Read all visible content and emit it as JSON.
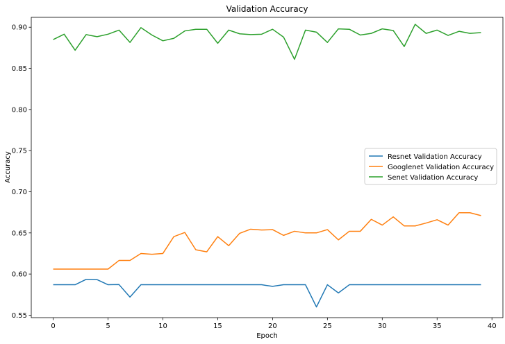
{
  "chart_data": {
    "type": "line",
    "title": "Validation Accuracy",
    "xlabel": "Epoch",
    "ylabel": "Accuracy",
    "xlim": [
      -2,
      41
    ],
    "ylim": [
      0.547,
      0.912
    ],
    "xticks": [
      0,
      5,
      10,
      15,
      20,
      25,
      30,
      35,
      40
    ],
    "yticks": [
      0.55,
      0.6,
      0.65,
      0.7,
      0.75,
      0.8,
      0.85,
      0.9
    ],
    "xtick_labels": [
      "0",
      "5",
      "10",
      "15",
      "20",
      "25",
      "30",
      "35",
      "40"
    ],
    "ytick_labels": [
      "0.55",
      "0.60",
      "0.65",
      "0.70",
      "0.75",
      "0.80",
      "0.85",
      "0.90"
    ],
    "legend_position": "center-right",
    "x": [
      0,
      1,
      2,
      3,
      4,
      5,
      6,
      7,
      8,
      9,
      10,
      11,
      12,
      13,
      14,
      15,
      16,
      17,
      18,
      19,
      20,
      21,
      22,
      23,
      24,
      25,
      26,
      27,
      28,
      29,
      30,
      31,
      32,
      33,
      34,
      35,
      36,
      37,
      38,
      39
    ],
    "series": [
      {
        "name": "Resnet Validation Accuracy",
        "color": "#1f77b4",
        "values": [
          0.587,
          0.587,
          0.587,
          0.5935,
          0.5932,
          0.587,
          0.5872,
          0.572,
          0.587,
          0.587,
          0.587,
          0.587,
          0.587,
          0.587,
          0.587,
          0.587,
          0.587,
          0.587,
          0.587,
          0.587,
          0.585,
          0.587,
          0.587,
          0.587,
          0.56,
          0.587,
          0.577,
          0.587,
          0.587,
          0.587,
          0.587,
          0.587,
          0.587,
          0.587,
          0.587,
          0.587,
          0.587,
          0.587,
          0.587,
          0.587
        ]
      },
      {
        "name": "Googlenet Validation Accuracy",
        "color": "#ff7f0e",
        "values": [
          0.606,
          0.606,
          0.606,
          0.606,
          0.606,
          0.606,
          0.6165,
          0.6165,
          0.625,
          0.624,
          0.625,
          0.6455,
          0.6505,
          0.6295,
          0.627,
          0.6455,
          0.6345,
          0.6495,
          0.6545,
          0.6535,
          0.654,
          0.647,
          0.652,
          0.65,
          0.65,
          0.654,
          0.6415,
          0.652,
          0.652,
          0.6665,
          0.6595,
          0.6695,
          0.6585,
          0.6585,
          0.662,
          0.666,
          0.6595,
          0.6745,
          0.6745,
          0.671
        ]
      },
      {
        "name": "Senet Validation Accuracy",
        "color": "#2ca02c",
        "values": [
          0.885,
          0.8915,
          0.872,
          0.891,
          0.8885,
          0.8915,
          0.8965,
          0.8815,
          0.8995,
          0.8905,
          0.8835,
          0.8865,
          0.8955,
          0.8975,
          0.8975,
          0.8805,
          0.8965,
          0.892,
          0.891,
          0.8915,
          0.8975,
          0.888,
          0.861,
          0.8965,
          0.894,
          0.8815,
          0.898,
          0.8975,
          0.8905,
          0.8925,
          0.898,
          0.896,
          0.8765,
          0.9035,
          0.8925,
          0.8965,
          0.89,
          0.895,
          0.8925,
          0.8935
        ]
      }
    ]
  }
}
